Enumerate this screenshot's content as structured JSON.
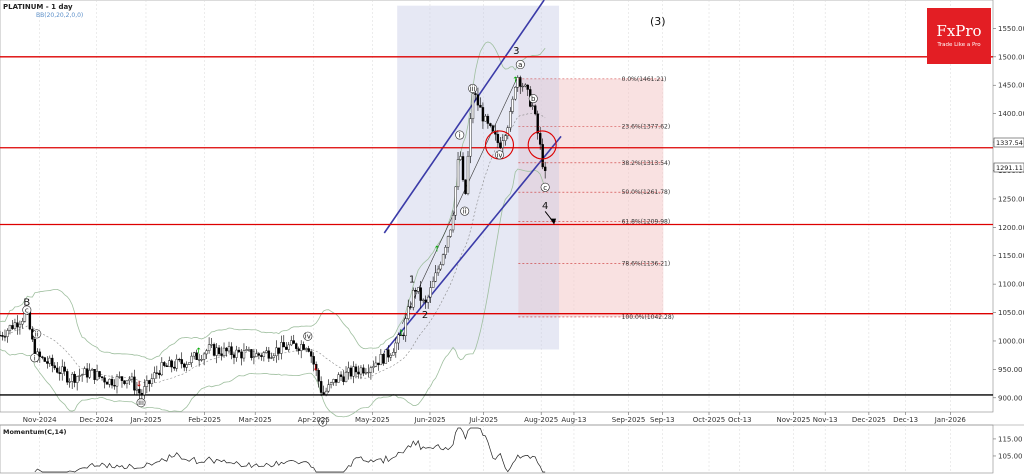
{
  "title": "PLATINUM - 1 day",
  "indicator_label": "BB(20,20,2,0,0)",
  "momentum_label": "Momentum(C,14)",
  "logo": {
    "name": "FxPro",
    "tagline": "Trade Like a Pro",
    "color": "#e31e24"
  },
  "big_wave_label": "(3)",
  "price_tags": {
    "current": "1337.54",
    "second": "1291.11"
  },
  "colors": {
    "resistance": "#dd0000",
    "channel": "#3b3ba8",
    "band": "#9fbf9f",
    "fib_zone": "#f4c8c8",
    "candle_up": "#000000",
    "candle_down": "#000000",
    "arrow_up": "#00aa00",
    "arrow_down": "#cc0000"
  },
  "chart_data": {
    "type": "candlestick",
    "title": "PLATINUM - 1 day",
    "y_range": [
      875,
      1600
    ],
    "y_ticks": [
      "1550.00",
      "1500.00",
      "1450.00",
      "1400.00",
      "1350.00",
      "1300.00",
      "1250.00",
      "1200.00",
      "1150.00",
      "1100.00",
      "1050.00",
      "1000.00",
      "950.00",
      "900.00"
    ],
    "x_ticks": [
      "Nov-2024",
      "Dec-2024",
      "Jan-2025",
      "Feb-2025",
      "Mar-2025",
      "Apr-2025",
      "May-2025",
      "Jun-2025",
      "Jul-2025",
      "Aug-2025",
      "Aug-13",
      "Sep-2025",
      "Sep-13",
      "Oct-2025",
      "Oct-13",
      "Nov-2025",
      "Nov-13",
      "Dec-2025",
      "Dec-13",
      "Jan-2026"
    ],
    "horizontal_levels": [
      1500,
      1340,
      1205,
      1048,
      905
    ],
    "fibonacci": [
      {
        "label": "0.0%(1461.21)",
        "value": 1461.21
      },
      {
        "label": "23.6%(1377.62)",
        "value": 1377.62
      },
      {
        "label": "38.2%(1313.54)",
        "value": 1313.54
      },
      {
        "label": "50.0%(1261.78)",
        "value": 1261.78
      },
      {
        "label": "61.8%(1209.98)",
        "value": 1209.98
      },
      {
        "label": "78.6%(1136.21)",
        "value": 1136.21
      },
      {
        "label": "100.0%(1042.28)",
        "value": 1042.28
      }
    ],
    "wave_labels": [
      {
        "text": "B",
        "t": 0.027,
        "v": 1062,
        "kind": "big"
      },
      {
        "text": "c",
        "t": 0.027,
        "v": 1050,
        "kind": "circ"
      },
      {
        "text": "ii",
        "t": 0.037,
        "v": 1008,
        "kind": "circ"
      },
      {
        "text": "i",
        "t": 0.035,
        "v": 966,
        "kind": "circ"
      },
      {
        "text": "iii",
        "t": 0.142,
        "v": 887,
        "kind": "circ"
      },
      {
        "text": "iv",
        "t": 0.31,
        "v": 1004,
        "kind": "circ"
      },
      {
        "text": "v",
        "t": 0.325,
        "v": 853,
        "kind": "circ"
      },
      {
        "text": "1",
        "t": 0.415,
        "v": 1103,
        "kind": "big"
      },
      {
        "text": "2",
        "t": 0.428,
        "v": 1040,
        "kind": "big"
      },
      {
        "text": "i",
        "t": 0.463,
        "v": 1358,
        "kind": "circ"
      },
      {
        "text": "ii",
        "t": 0.468,
        "v": 1224,
        "kind": "circ"
      },
      {
        "text": "iii",
        "t": 0.476,
        "v": 1440,
        "kind": "circ"
      },
      {
        "text": "iv",
        "t": 0.503,
        "v": 1323,
        "kind": "circ"
      },
      {
        "text": "3",
        "t": 0.52,
        "v": 1505,
        "kind": "big"
      },
      {
        "text": "a",
        "t": 0.524,
        "v": 1482,
        "kind": "circ"
      },
      {
        "text": "b",
        "t": 0.537,
        "v": 1422,
        "kind": "circ"
      },
      {
        "text": "c",
        "t": 0.549,
        "v": 1266,
        "kind": "circ"
      },
      {
        "text": "4",
        "t": 0.549,
        "v": 1232,
        "kind": "big"
      }
    ],
    "momentum": {
      "y_ticks": [
        "115.00",
        "105.00"
      ],
      "y_range": [
        95,
        122
      ]
    }
  }
}
